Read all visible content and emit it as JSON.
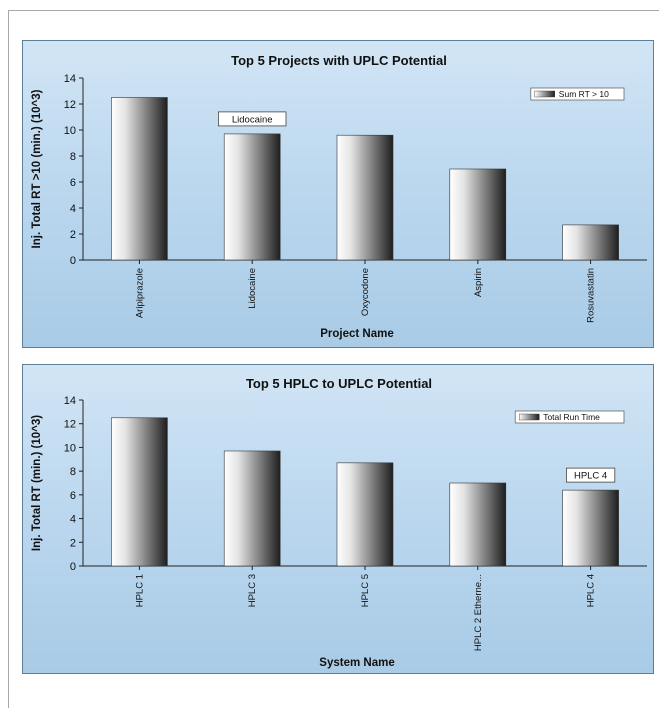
{
  "chart_data": [
    {
      "type": "bar",
      "title": "Top 5 Projects with UPLC Potential",
      "xlabel": "Project Name",
      "ylabel": "Inj. Total RT >10 (min.) (10^3)",
      "categories": [
        "Aripiprazole",
        "Lidocaine",
        "Oxycodone",
        "Aspirin",
        "Rosuvastatin"
      ],
      "series": [
        {
          "name": "Sum RT > 10",
          "values": [
            12.5,
            9.7,
            9.6,
            7.0,
            2.7
          ]
        }
      ],
      "ylim": [
        0,
        14
      ],
      "yticks": [
        0,
        2,
        4,
        6,
        8,
        10,
        12,
        14
      ],
      "grid": false,
      "legend_position": "top-right",
      "annotation": {
        "category": "Lidocaine",
        "text": "Lidocaine"
      }
    },
    {
      "type": "bar",
      "title": "Top 5 HPLC to UPLC Potential",
      "xlabel": "System Name",
      "ylabel": "Inj. Total RT (min.) (10^3)",
      "categories": [
        "HPLC 1",
        "HPLC 3",
        "HPLC 5",
        "HPLC 2 Etherne...",
        "HPLC 4"
      ],
      "series": [
        {
          "name": "Total Run Time",
          "values": [
            12.5,
            9.7,
            8.7,
            7.0,
            6.4
          ]
        }
      ],
      "ylim": [
        0,
        14
      ],
      "yticks": [
        0,
        2,
        4,
        6,
        8,
        10,
        12,
        14
      ],
      "grid": false,
      "legend_position": "top-right",
      "annotation": {
        "category": "HPLC 4",
        "text": "HPLC 4"
      }
    }
  ],
  "colors": {
    "panel_border": "#5f7f98",
    "bar_light": "#ffffff",
    "bar_dark": "#1e1e1e",
    "text": "#111111"
  }
}
